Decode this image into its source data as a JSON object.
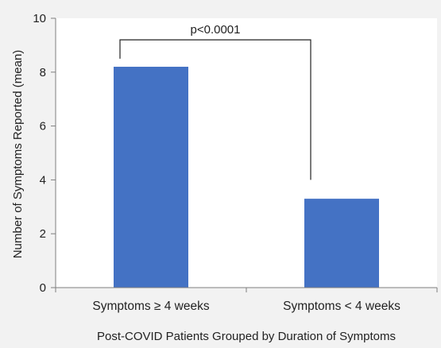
{
  "chart_data": {
    "type": "bar",
    "categories": [
      "Symptoms ≥ 4 weeks",
      "Symptoms < 4 weeks"
    ],
    "values": [
      8.2,
      3.3
    ],
    "xlabel": "Post-COVID Patients Grouped by Duration of Symptoms",
    "ylabel": "Number of Symptoms Reported (mean)",
    "ylim": [
      0,
      10
    ],
    "yticks": [
      0,
      2,
      4,
      6,
      8,
      10
    ],
    "grid": false,
    "bar_color": "#4472c4",
    "annotation": {
      "text": "p<0.0001",
      "bracket_left_y": 8.5,
      "bracket_right_y": 4.0,
      "bracket_top_y": 9.2
    }
  }
}
